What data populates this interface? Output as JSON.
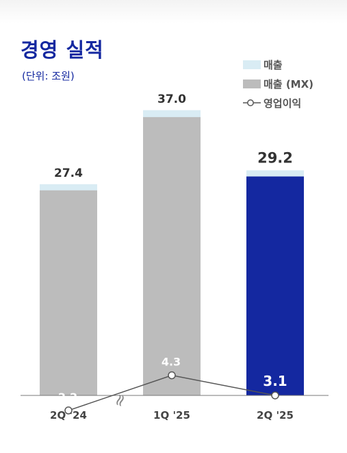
{
  "header": {
    "title": "경영 실적",
    "unit": "(단위: 조원)"
  },
  "legend": {
    "items": [
      {
        "label": "매출",
        "color": "#d9ecf4",
        "kind": "box"
      },
      {
        "label": "매출 (MX)",
        "color": "#bcbcbc",
        "kind": "box"
      },
      {
        "label": "영업이익",
        "color": "#555555",
        "kind": "line-marker"
      }
    ]
  },
  "chart_data": {
    "type": "bar",
    "categories": [
      "2Q '24",
      "1Q '25",
      "2Q '25"
    ],
    "series": [
      {
        "name": "매출",
        "values": [
          27.4,
          37.0,
          29.2
        ],
        "color": "#d9ecf4"
      },
      {
        "name": "매출 (MX)",
        "values": [
          26.6,
          36.1,
          28.4
        ],
        "colors": [
          "#bcbcbc",
          "#bcbcbc",
          "#1428a0"
        ]
      },
      {
        "name": "영업이익",
        "type": "line",
        "values": [
          2.2,
          4.3,
          3.1
        ],
        "color": "#555555"
      }
    ],
    "value_labels": {
      "revenue": [
        "27.4",
        "37.0",
        "29.2"
      ],
      "operating_profit": [
        "2.2",
        "4.3",
        "3.1"
      ]
    },
    "axis_break_symbol": "≈",
    "highlight_color": "#1428a0",
    "grid": false,
    "legend_position": "top-right"
  }
}
